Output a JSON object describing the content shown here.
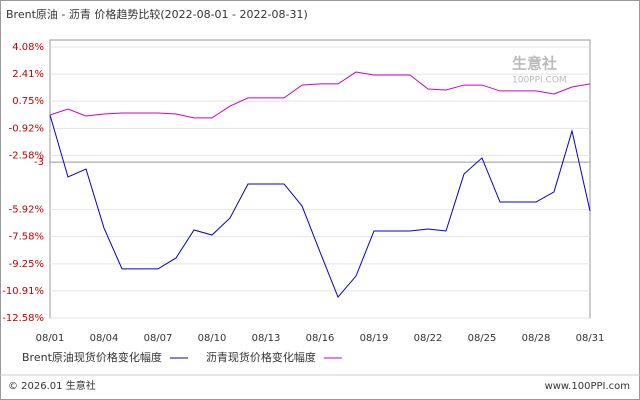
{
  "chart_data": {
    "type": "line",
    "title": "Brent原油 - 沥青 价格趋势比较(2022-08-01 - 2022-08-31)",
    "categories": [
      "08/01",
      null,
      null,
      "08/04",
      null,
      null,
      "08/07",
      null,
      null,
      "08/10",
      null,
      null,
      "08/13",
      null,
      null,
      "08/16",
      null,
      null,
      "08/19",
      null,
      null,
      "08/22",
      null,
      null,
      "08/25",
      null,
      null,
      "08/28",
      null,
      null,
      "08/31"
    ],
    "series": [
      {
        "name": "Brent原油现货价格变化幅度",
        "color": "#0000cc",
        "values": [
          -0.1,
          -3.91,
          -3.42,
          -7.05,
          -9.56,
          -9.56,
          -9.56,
          -8.89,
          -7.17,
          -7.48,
          -6.43,
          -4.34,
          -4.34,
          -4.34,
          -5.69,
          -8.52,
          -11.29,
          -10.0,
          -7.23,
          -7.23,
          -7.23,
          -7.11,
          -7.23,
          -3.73,
          -2.74,
          -5.45,
          -5.45,
          -5.45,
          -4.83,
          -1.08,
          -6.0
        ]
      },
      {
        "name": "沥青现货价格变化幅度",
        "color": "#cc00cc",
        "values": [
          -0.1,
          0.27,
          -0.16,
          -0.04,
          0.02,
          0.02,
          0.02,
          -0.04,
          -0.28,
          -0.28,
          0.45,
          0.95,
          0.95,
          0.95,
          1.74,
          1.81,
          1.81,
          2.54,
          2.36,
          2.36,
          2.36,
          1.5,
          1.44,
          1.74,
          1.74,
          1.38,
          1.38,
          1.38,
          1.19,
          1.62,
          1.81
        ]
      }
    ],
    "ylim": [
      -12.58,
      4.08
    ],
    "yticks": [
      {
        "value": 4.08,
        "label": "4.08%"
      },
      {
        "value": 2.41,
        "label": "2.41%"
      },
      {
        "value": 0.75,
        "label": "0.75%"
      },
      {
        "value": -0.92,
        "label": "-0.92%"
      },
      {
        "value": -2.58,
        "label": "-2.58%"
      },
      -3,
      {
        "value": -5.92,
        "label": "-5.92%"
      },
      {
        "value": -7.58,
        "label": "-7.58%"
      },
      {
        "value": -9.25,
        "label": "-9.25%"
      },
      {
        "value": -10.91,
        "label": "-10.91%"
      },
      {
        "value": -12.58,
        "label": "-12.58%"
      }
    ],
    "grid": true,
    "watermark": "生意社",
    "watermark_url": "100PPI.COM",
    "footer_left": "© 2026.01 生意社",
    "footer_right": "www.100PPI.com"
  }
}
